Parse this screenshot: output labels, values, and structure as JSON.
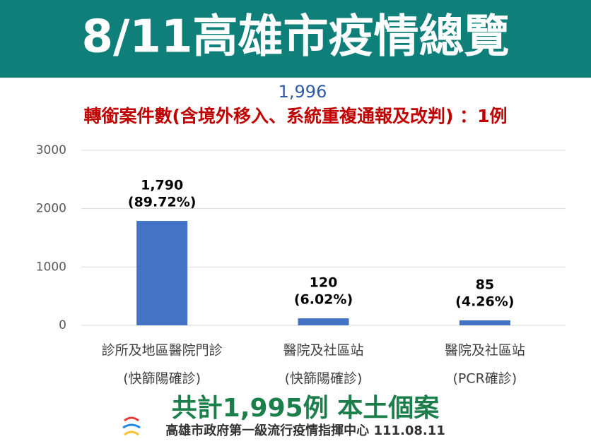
{
  "chart_data": {
    "type": "bar",
    "title": "8/11高雄市疫情總覽",
    "total_label": "1,996",
    "note": "轉銜案件數(含境外移入、系統重複通報及改判) ：1例",
    "categories": [
      "診所及地區醫院門診",
      "醫院及社區站",
      "醫院及社區站"
    ],
    "category_notes": [
      "(快篩陽確診)",
      "(快篩陽確診)",
      "(PCR確診)"
    ],
    "values": [
      1790,
      120,
      85
    ],
    "value_labels": [
      "1,790",
      "120",
      "85"
    ],
    "percent_labels": [
      "(89.72%)",
      "(6.02%)",
      "(4.26%)"
    ],
    "color": "#4472c4",
    "ylim": [
      0,
      3000
    ],
    "yticks": [
      0,
      1000,
      2000,
      3000
    ],
    "grid": true,
    "summary": "共計1,995例 本土個案",
    "source": "高雄市政府第一級流行疫情指揮中心 111.08.11"
  }
}
